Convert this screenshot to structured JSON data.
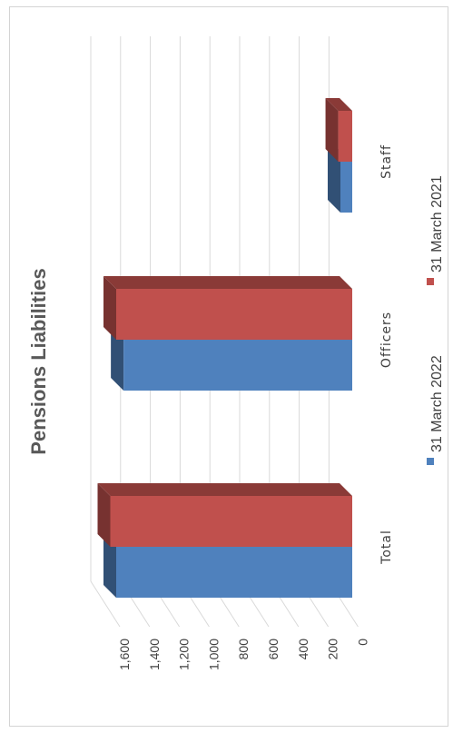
{
  "chart_data": {
    "type": "bar",
    "orientation": "horizontal-3d",
    "title": "Pensions Liabilities",
    "categories": [
      "Total",
      "Officers",
      "Staff"
    ],
    "series": [
      {
        "name": "31 March 2022",
        "values": [
          1600,
          1550,
          80
        ],
        "color": "#4f81bd"
      },
      {
        "name": "31 March 2021",
        "values": [
          1640,
          1600,
          95
        ],
        "color": "#c0504d"
      }
    ],
    "y_ticks": [
      "0",
      "200",
      "400",
      "600",
      "800",
      "1,000",
      "1,200",
      "1,400",
      "1,600"
    ],
    "ylim": [
      0,
      1600
    ],
    "grid": true,
    "legend_position": "bottom"
  }
}
